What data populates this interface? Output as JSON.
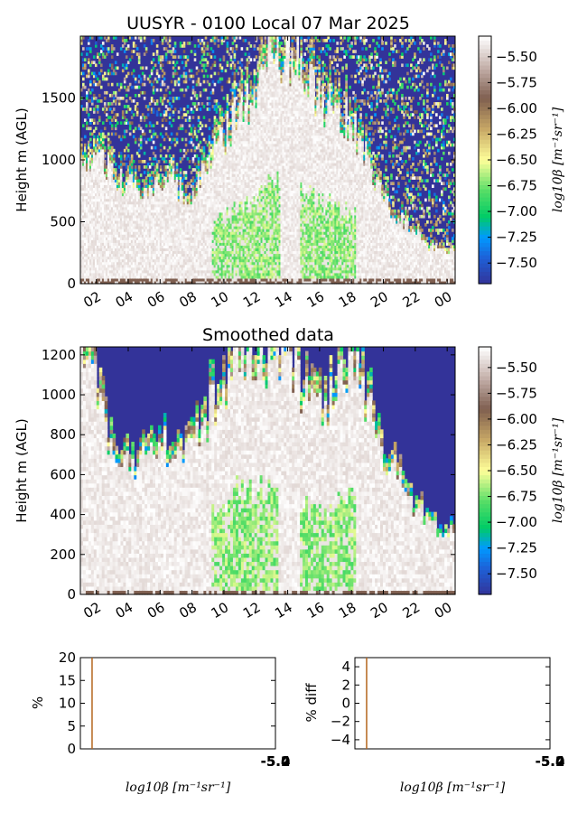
{
  "chart_data": [
    {
      "type": "heatmap",
      "title": "UUSYR - 0100 Local 07 Mar 2025",
      "xlabel": "",
      "ylabel": "Height m (AGL)",
      "x_tick_labels": [
        "02",
        "04",
        "06",
        "08",
        "10",
        "12",
        "14",
        "16",
        "18",
        "20",
        "22",
        "00"
      ],
      "x_range_hours": [
        1,
        24.5
      ],
      "x_tick_hours": [
        2,
        4,
        6,
        8,
        10,
        12,
        14,
        16,
        18,
        20,
        22,
        24
      ],
      "ylim": [
        0,
        2000
      ],
      "y_ticks": [
        0,
        500,
        1000,
        1500
      ],
      "colorbar": {
        "label": "log10β [m⁻¹sr⁻¹]",
        "range": [
          -7.7,
          -5.3
        ],
        "ticks": [
          "-5.50",
          "-5.75",
          "-6.00",
          "-6.25",
          "-6.50",
          "-6.75",
          "-7.00",
          "-7.25",
          "-7.50"
        ],
        "tick_values": [
          -5.5,
          -5.75,
          -6.0,
          -6.25,
          -6.5,
          -6.75,
          -7.0,
          -7.25,
          -7.5
        ]
      },
      "colormap": [
        {
          "v": -7.7,
          "c": "#333399"
        },
        {
          "v": -7.45,
          "c": "#1e5fd6"
        },
        {
          "v": -7.25,
          "c": "#0099ff"
        },
        {
          "v": -7.05,
          "c": "#00cc66"
        },
        {
          "v": -6.8,
          "c": "#55dd66"
        },
        {
          "v": -6.5,
          "c": "#ffff99"
        },
        {
          "v": -6.2,
          "c": "#c8a866"
        },
        {
          "v": -5.9,
          "c": "#7f5f50"
        },
        {
          "v": -5.6,
          "c": "#c4b0aa"
        },
        {
          "v": -5.3,
          "c": "#ffffff"
        }
      ],
      "cloud_top_profile_m": [
        [
          1,
          1100
        ],
        [
          2,
          1000
        ],
        [
          3,
          900
        ],
        [
          4,
          800
        ],
        [
          5,
          760
        ],
        [
          6,
          850
        ],
        [
          7,
          800
        ],
        [
          8,
          700
        ],
        [
          9,
          1000
        ],
        [
          10,
          1200
        ],
        [
          11,
          1400
        ],
        [
          12,
          1600
        ],
        [
          13,
          1800
        ],
        [
          14,
          1900
        ],
        [
          15,
          1700
        ],
        [
          16,
          1500
        ],
        [
          17,
          1400
        ],
        [
          18,
          1300
        ],
        [
          19,
          1000
        ],
        [
          20,
          700
        ],
        [
          21,
          550
        ],
        [
          22,
          400
        ],
        [
          23,
          300
        ],
        [
          24.5,
          250
        ]
      ],
      "green_zones_hours": [
        [
          9.3,
          13.5
        ],
        [
          14.8,
          18.3
        ]
      ]
    },
    {
      "type": "heatmap",
      "title": "Smoothed data",
      "xlabel": "",
      "ylabel": "Height m (AGL)",
      "x_tick_labels": [
        "02",
        "04",
        "06",
        "08",
        "10",
        "12",
        "14",
        "16",
        "18",
        "20",
        "22",
        "00"
      ],
      "x_range_hours": [
        1,
        24.5
      ],
      "x_tick_hours": [
        2,
        4,
        6,
        8,
        10,
        12,
        14,
        16,
        18,
        20,
        22,
        24
      ],
      "ylim": [
        0,
        1240
      ],
      "y_ticks": [
        0,
        200,
        400,
        600,
        800,
        1000,
        1200
      ],
      "colorbar": {
        "label": "log10β [m⁻¹sr⁻¹]",
        "range": [
          -7.7,
          -5.3
        ],
        "ticks": [
          "-5.50",
          "-5.75",
          "-6.00",
          "-6.25",
          "-6.50",
          "-6.75",
          "-7.00",
          "-7.25",
          "-7.50"
        ],
        "tick_values": [
          -5.5,
          -5.75,
          -6.0,
          -6.25,
          -6.5,
          -6.75,
          -7.0,
          -7.25,
          -7.5
        ]
      },
      "cloud_top_profile_m": [
        [
          1,
          1150
        ],
        [
          2,
          1000
        ],
        [
          3,
          760
        ],
        [
          4,
          700
        ],
        [
          5,
          650
        ],
        [
          6,
          700
        ],
        [
          7,
          780
        ],
        [
          8,
          740
        ],
        [
          9,
          900
        ],
        [
          10,
          1000
        ],
        [
          11,
          1200
        ],
        [
          12,
          1240
        ],
        [
          13,
          1100
        ],
        [
          14,
          1240
        ],
        [
          15,
          1000
        ],
        [
          16,
          900
        ],
        [
          17,
          1000
        ],
        [
          18,
          1100
        ],
        [
          19,
          1000
        ],
        [
          20,
          700
        ],
        [
          21,
          560
        ],
        [
          22,
          450
        ],
        [
          23,
          350
        ],
        [
          24.5,
          300
        ]
      ],
      "green_zones_hours": [
        [
          9.3,
          13.5
        ],
        [
          14.8,
          18.3
        ]
      ]
    },
    {
      "type": "line",
      "title": "",
      "xlabel": "log10β [m⁻¹sr⁻¹]",
      "ylabel": "%",
      "ylim": [
        0,
        20
      ],
      "y_ticks": [
        "0",
        "5",
        "10",
        "15",
        "20"
      ],
      "y_tick_values": [
        0,
        5,
        10,
        15,
        20
      ],
      "x_tick_labels": [
        "-5.2",
        "-5.0",
        "-5.4"
      ],
      "vline_x_fraction": 0.06,
      "vline_color": "#b5651d"
    },
    {
      "type": "line",
      "title": "",
      "xlabel": "log10β [m⁻¹sr⁻¹]",
      "ylabel": "% diff",
      "ylim": [
        -5,
        5
      ],
      "y_ticks": [
        "−4",
        "−2",
        "0",
        "2",
        "4"
      ],
      "y_tick_values": [
        -4,
        -2,
        0,
        2,
        4
      ],
      "x_tick_labels": [
        "-5.2",
        "-5.0",
        "-5.4"
      ],
      "vline_x_fraction": 0.06,
      "vline_color": "#b5651d"
    }
  ]
}
